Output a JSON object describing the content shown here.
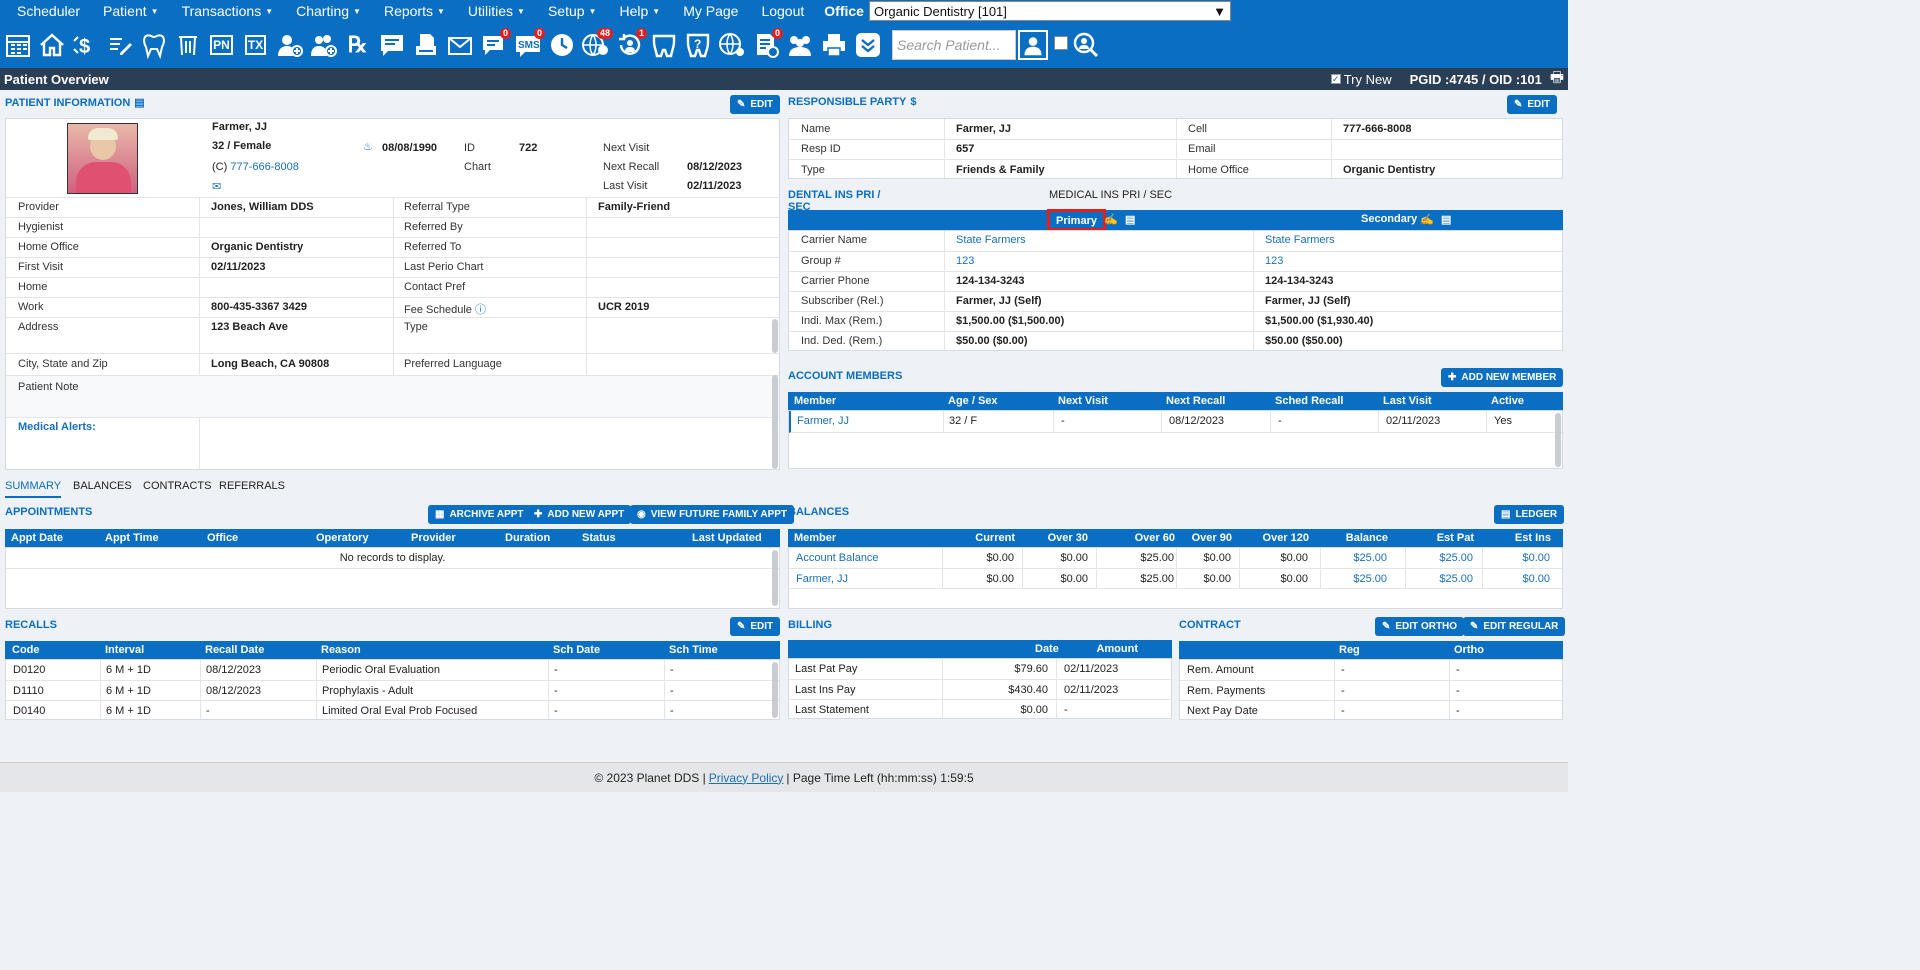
{
  "menu": {
    "items": [
      "Scheduler",
      "Patient",
      "Transactions",
      "Charting",
      "Reports",
      "Utilities",
      "Setup",
      "Help",
      "My Page",
      "Logout"
    ],
    "office_label": "Office",
    "office_value": "Organic Dentistry [101]"
  },
  "toolbar": {
    "badges": {
      "messages": "0",
      "sms": "0",
      "online": "48",
      "recall": "1",
      "forms": "0"
    },
    "search_placeholder": "Search Patient...",
    "pn": "PN",
    "tx": "TX"
  },
  "titlebar": {
    "title": "Patient Overview",
    "try_new": "Try New",
    "ids": "PGID :4745  /  OID :101"
  },
  "patient": {
    "header": "PATIENT INFORMATION",
    "edit": "EDIT",
    "name": "Farmer, JJ",
    "age_sex": "32 / Female",
    "phone_prefix": "(C)",
    "phone": "777-666-8008",
    "dob": "08/08/1990",
    "id_label": "ID",
    "id": "722",
    "chart_label": "Chart",
    "next_visit_label": "Next Visit",
    "next_visit": "",
    "next_recall_label": "Next Recall",
    "next_recall": "08/12/2023",
    "last_visit_label": "Last Visit",
    "last_visit": "02/11/2023",
    "rows": [
      {
        "l1": "Provider",
        "v1": "Jones, William DDS",
        "l2": "Referral Type",
        "v2": "Family-Friend"
      },
      {
        "l1": "Hygienist",
        "v1": "",
        "l2": "Referred By",
        "v2": ""
      },
      {
        "l1": "Home Office",
        "v1": "Organic Dentistry",
        "l2": "Referred To",
        "v2": ""
      },
      {
        "l1": "First Visit",
        "v1": "02/11/2023",
        "l2": "Last Perio Chart",
        "v2": ""
      },
      {
        "l1": "Home",
        "v1": "",
        "l2": "Contact Pref",
        "v2": ""
      },
      {
        "l1": "Work",
        "v1": "800-435-3367 3429",
        "l2": "Fee Schedule",
        "v2": "UCR 2019"
      },
      {
        "l1": "Address",
        "v1": "123 Beach Ave",
        "l2": "Type",
        "v2": ""
      },
      {
        "l1": "City, State and Zip",
        "v1": "Long Beach, CA 90808",
        "l2": "Preferred Language",
        "v2": ""
      }
    ],
    "note_label": "Patient Note",
    "alerts_label": "Medical Alerts:"
  },
  "responsible": {
    "header": "RESPONSIBLE PARTY",
    "edit": "EDIT",
    "rows": [
      {
        "l1": "Name",
        "v1": "Farmer, JJ",
        "l2": "Cell",
        "v2": "777-666-8008"
      },
      {
        "l1": "Resp ID",
        "v1": "657",
        "l2": "Email",
        "v2": ""
      },
      {
        "l1": "Type",
        "v1": "Friends & Family",
        "l2": "Home Office",
        "v2": "Organic Dentistry"
      }
    ]
  },
  "insurance": {
    "tab_dental": "DENTAL INS PRI / SEC",
    "tab_medical": "MEDICAL INS PRI / SEC",
    "primary": "Primary",
    "secondary": "Secondary",
    "rows": [
      {
        "l": "Carrier Name",
        "p": "State Farmers",
        "s": "State Farmers"
      },
      {
        "l": "Group #",
        "p": "123",
        "s": "123"
      },
      {
        "l": "Carrier Phone",
        "p": "124-134-3243",
        "s": "124-134-3243"
      },
      {
        "l": "Subscriber (Rel.)",
        "p": "Farmer, JJ (Self)",
        "s": "Farmer, JJ (Self)"
      },
      {
        "l": "Indi. Max (Rem.)",
        "p": "$1,500.00 ($1,500.00)",
        "s": "$1,500.00 ($1,930.40)"
      },
      {
        "l": "Ind. Ded. (Rem.)",
        "p": "$50.00 ($0.00)",
        "s": "$50.00 ($50.00)"
      }
    ]
  },
  "members": {
    "header": "ACCOUNT MEMBERS",
    "add": "ADD NEW MEMBER",
    "cols": [
      "Member",
      "Age / Sex",
      "Next Visit",
      "Next Recall",
      "Sched Recall",
      "Last Visit",
      "Active"
    ],
    "row": [
      "Farmer, JJ",
      "32 / F",
      "-",
      "08/12/2023",
      "-",
      "02/11/2023",
      "Yes"
    ]
  },
  "tabs": [
    "SUMMARY",
    "BALANCES",
    "CONTRACTS",
    "REFERRALS"
  ],
  "appointments": {
    "header": "APPOINTMENTS",
    "archive": "ARCHIVE APPT",
    "add": "ADD NEW APPT",
    "future": "VIEW FUTURE FAMILY APPT",
    "cols": [
      "Appt Date",
      "Appt Time",
      "Office",
      "Operatory",
      "Provider",
      "Duration",
      "Status",
      "Last Updated"
    ],
    "empty": "No records to display."
  },
  "balances": {
    "header": "BALANCES",
    "ledger": "LEDGER",
    "cols": [
      "Member",
      "Current",
      "Over 30",
      "Over 60",
      "Over 90",
      "Over 120",
      "Balance",
      "Est Pat",
      "Est Ins"
    ],
    "rows": [
      [
        "Account Balance",
        "$0.00",
        "$0.00",
        "$25.00",
        "$0.00",
        "$0.00",
        "$25.00",
        "$25.00",
        "$0.00"
      ],
      [
        "Farmer, JJ",
        "$0.00",
        "$0.00",
        "$25.00",
        "$0.00",
        "$0.00",
        "$25.00",
        "$25.00",
        "$0.00"
      ]
    ]
  },
  "recalls": {
    "header": "RECALLS",
    "edit": "EDIT",
    "cols": [
      "Code",
      "Interval",
      "Recall Date",
      "Reason",
      "Sch Date",
      "Sch Time"
    ],
    "rows": [
      [
        "D0120",
        "6 M + 1D",
        "08/12/2023",
        "Periodic Oral Evaluation",
        "-",
        "-"
      ],
      [
        "D1110",
        "6 M + 1D",
        "08/12/2023",
        "Prophylaxis - Adult",
        "-",
        "-"
      ],
      [
        "D0140",
        "6 M + 1D",
        "-",
        "Limited Oral Eval Prob Focused",
        "-",
        "-"
      ]
    ]
  },
  "billing": {
    "header": "BILLING",
    "cols": [
      "Amount",
      "Date"
    ],
    "rows": [
      [
        "Last Pat Pay",
        "$79.60",
        "02/11/2023"
      ],
      [
        "Last Ins Pay",
        "$430.40",
        "02/11/2023"
      ],
      [
        "Last Statement",
        "$0.00",
        "-"
      ]
    ]
  },
  "contract": {
    "header": "CONTRACT",
    "edit_ortho": "EDIT ORTHO",
    "edit_regular": "EDIT REGULAR",
    "cols": [
      "Reg",
      "Ortho"
    ],
    "rows": [
      [
        "Rem. Amount",
        "-",
        "-"
      ],
      [
        "Rem. Payments",
        "-",
        "-"
      ],
      [
        "Next Pay Date",
        "-",
        "-"
      ]
    ]
  },
  "footer": {
    "copyright": "© 2023 Planet DDS |",
    "privacy": "Privacy Policy",
    "time": "|  Page Time Left (hh:mm:ss) 1:59:5"
  },
  "colors": {
    "brand": "#0a6fc2",
    "titlebar": "#2a3e55",
    "highlight": "#e0201e"
  }
}
